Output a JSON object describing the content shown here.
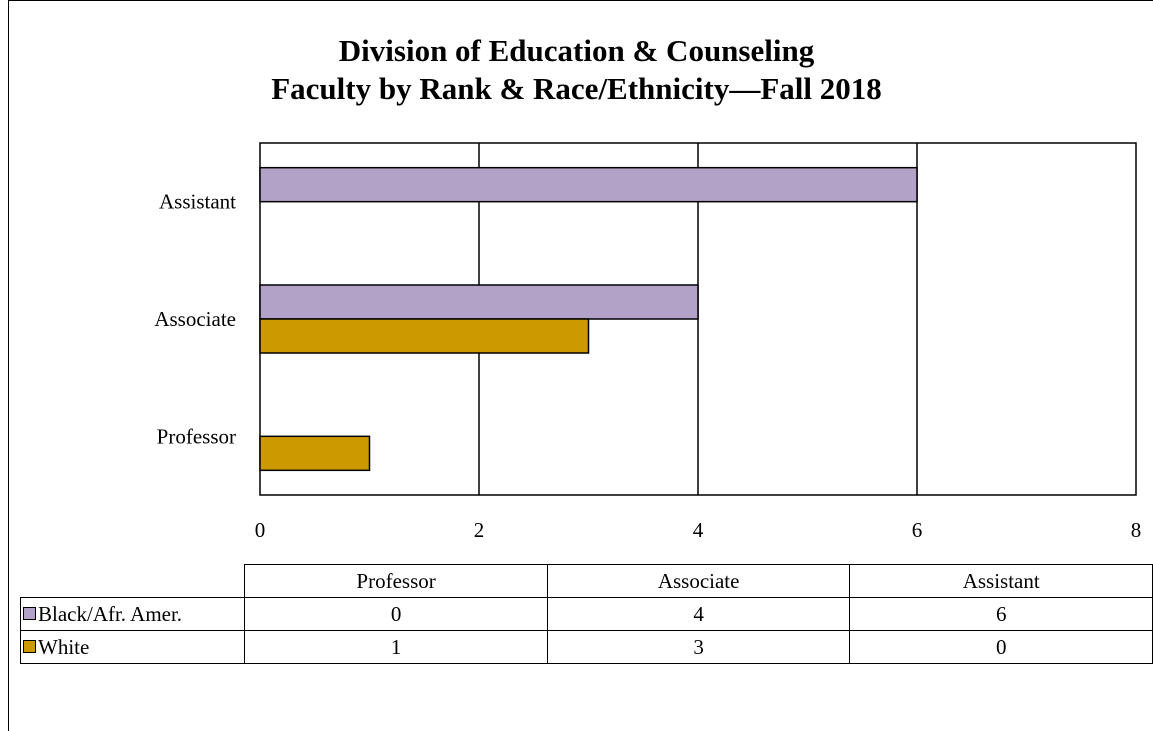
{
  "title": {
    "line1": "Division of Education & Counseling",
    "line2": "Faculty by Rank & Race/Ethnicity—Fall 2018"
  },
  "chart_data": {
    "type": "bar",
    "orientation": "horizontal",
    "title": "Division of Education & Counseling Faculty by Rank & Race/Ethnicity—Fall 2018",
    "categories": [
      "Professor",
      "Associate",
      "Assistant"
    ],
    "series": [
      {
        "name": "Black/Afr. Amer.",
        "values": [
          0,
          4,
          6
        ],
        "color": "#b3a2c7"
      },
      {
        "name": "White",
        "values": [
          1,
          3,
          0
        ],
        "color": "#cc9900"
      }
    ],
    "xlim": [
      0,
      8
    ],
    "xticks": [
      "0",
      "2",
      "4",
      "6",
      "8"
    ],
    "grid": true,
    "legend": "data table below chart"
  },
  "table": {
    "headers": [
      "Professor",
      "Associate",
      "Assistant"
    ],
    "rows": [
      {
        "label": "Black/Afr. Amer.",
        "cells": [
          "0",
          "4",
          "6"
        ]
      },
      {
        "label": "White",
        "cells": [
          "1",
          "3",
          "0"
        ]
      }
    ]
  }
}
